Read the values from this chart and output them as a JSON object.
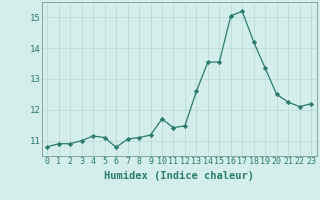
{
  "x": [
    0,
    1,
    2,
    3,
    4,
    5,
    6,
    7,
    8,
    9,
    10,
    11,
    12,
    13,
    14,
    15,
    16,
    17,
    18,
    19,
    20,
    21,
    22,
    23
  ],
  "y": [
    10.8,
    10.9,
    10.9,
    11.0,
    11.15,
    11.1,
    10.78,
    11.05,
    11.1,
    11.18,
    11.7,
    11.42,
    11.48,
    12.6,
    13.55,
    13.55,
    15.05,
    15.2,
    14.2,
    13.35,
    12.5,
    12.25,
    12.1,
    12.2
  ],
  "xlabel": "Humidex (Indice chaleur)",
  "ylim": [
    10.5,
    15.5
  ],
  "xlim": [
    -0.5,
    23.5
  ],
  "yticks": [
    11,
    12,
    13,
    14,
    15
  ],
  "xticks": [
    0,
    1,
    2,
    3,
    4,
    5,
    6,
    7,
    8,
    9,
    10,
    11,
    12,
    13,
    14,
    15,
    16,
    17,
    18,
    19,
    20,
    21,
    22,
    23
  ],
  "line_color": "#2d7a6e",
  "marker_color": "#2d7a6e",
  "bg_color": "#d4eeec",
  "grid_color": "#b8d8d5",
  "axis_color": "#7a9a98",
  "font_color": "#2d7a6e",
  "tick_fontsize": 6.0,
  "xlabel_fontsize": 7.5
}
